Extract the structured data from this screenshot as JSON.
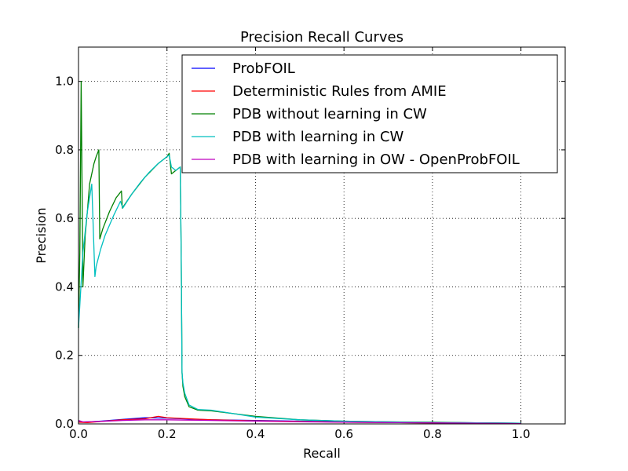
{
  "chart_data": {
    "type": "line",
    "title": "Precision Recall Curves",
    "xlabel": "Recall",
    "ylabel": "Precision",
    "xlim": [
      0.0,
      1.1
    ],
    "ylim": [
      0.0,
      1.1
    ],
    "xticks": [
      0.0,
      0.2,
      0.4,
      0.6,
      0.8,
      1.0
    ],
    "yticks": [
      0.0,
      0.2,
      0.4,
      0.6,
      0.8,
      1.0
    ],
    "xtick_labels": [
      "0.0",
      "0.2",
      "0.4",
      "0.6",
      "0.8",
      "1.0"
    ],
    "ytick_labels": [
      "0.0",
      "0.2",
      "0.4",
      "0.6",
      "0.8",
      "1.0"
    ],
    "grid": true,
    "legend_position": "top-right",
    "series": [
      {
        "name": "ProbFOIL",
        "color": "#0000ff",
        "x": [
          0.0,
          0.01,
          0.05,
          0.1,
          0.15,
          0.2,
          0.25,
          0.3,
          0.4,
          0.5,
          0.6,
          0.7,
          0.8,
          0.9,
          1.0
        ],
        "y": [
          0.008,
          0.005,
          0.008,
          0.013,
          0.018,
          0.017,
          0.014,
          0.012,
          0.01,
          0.008,
          0.006,
          0.005,
          0.004,
          0.003,
          0.002
        ]
      },
      {
        "name": "Deterministic Rules from AMIE",
        "color": "#ff0000",
        "x": [
          0.0,
          0.02,
          0.05,
          0.1,
          0.15,
          0.18,
          0.2,
          0.25,
          0.3,
          0.4,
          0.5,
          0.6,
          0.7,
          0.8,
          0.9,
          1.0
        ],
        "y": [
          0.005,
          0.004,
          0.007,
          0.012,
          0.015,
          0.022,
          0.018,
          0.015,
          0.012,
          0.009,
          0.007,
          0.005,
          0.004,
          0.003,
          0.002,
          0.001
        ]
      },
      {
        "name": "PDB without learning in CW",
        "color": "#008000",
        "x": [
          0.0,
          0.003,
          0.006,
          0.01,
          0.015,
          0.02,
          0.025,
          0.03,
          0.035,
          0.04,
          0.046,
          0.048,
          0.055,
          0.07,
          0.085,
          0.097,
          0.099,
          0.12,
          0.15,
          0.18,
          0.2,
          0.205,
          0.21,
          0.22,
          0.225,
          0.23,
          0.232,
          0.234,
          0.236,
          0.24,
          0.25,
          0.27,
          0.3,
          0.35,
          0.4,
          0.5,
          0.6,
          0.7,
          0.8,
          0.9,
          1.0
        ],
        "y": [
          0.28,
          0.5,
          1.0,
          0.4,
          0.55,
          0.62,
          0.7,
          0.73,
          0.76,
          0.78,
          0.8,
          0.54,
          0.57,
          0.62,
          0.66,
          0.68,
          0.63,
          0.67,
          0.72,
          0.76,
          0.78,
          0.79,
          0.73,
          0.74,
          0.745,
          0.75,
          0.5,
          0.15,
          0.11,
          0.08,
          0.05,
          0.04,
          0.038,
          0.03,
          0.022,
          0.012,
          0.008,
          0.006,
          0.005,
          0.003,
          0.002
        ]
      },
      {
        "name": "PDB with learning in CW",
        "color": "#00bfbf",
        "x": [
          0.0,
          0.01,
          0.02,
          0.03,
          0.037,
          0.04,
          0.05,
          0.06,
          0.08,
          0.095,
          0.1,
          0.12,
          0.14,
          0.16,
          0.18,
          0.2,
          0.205,
          0.21,
          0.22,
          0.23,
          0.232,
          0.234,
          0.236,
          0.24,
          0.25,
          0.27,
          0.3,
          0.35,
          0.4,
          0.5,
          0.6,
          0.7,
          0.8,
          0.9,
          1.0
        ],
        "y": [
          0.28,
          0.5,
          0.62,
          0.7,
          0.43,
          0.46,
          0.51,
          0.55,
          0.61,
          0.65,
          0.63,
          0.67,
          0.705,
          0.735,
          0.76,
          0.78,
          0.785,
          0.75,
          0.74,
          0.75,
          0.5,
          0.15,
          0.12,
          0.09,
          0.055,
          0.042,
          0.04,
          0.03,
          0.02,
          0.012,
          0.008,
          0.006,
          0.004,
          0.003,
          0.002
        ]
      },
      {
        "name": "PDB with learning in OW - OpenProbFOIL",
        "color": "#bf00bf",
        "x": [
          0.0,
          0.01,
          0.05,
          0.1,
          0.15,
          0.2,
          0.25,
          0.3,
          0.4,
          0.5,
          0.6,
          0.7,
          0.8,
          0.9,
          1.0
        ],
        "y": [
          0.01,
          0.006,
          0.007,
          0.01,
          0.012,
          0.012,
          0.011,
          0.01,
          0.008,
          0.006,
          0.005,
          0.004,
          0.003,
          0.002,
          0.001
        ]
      }
    ]
  }
}
